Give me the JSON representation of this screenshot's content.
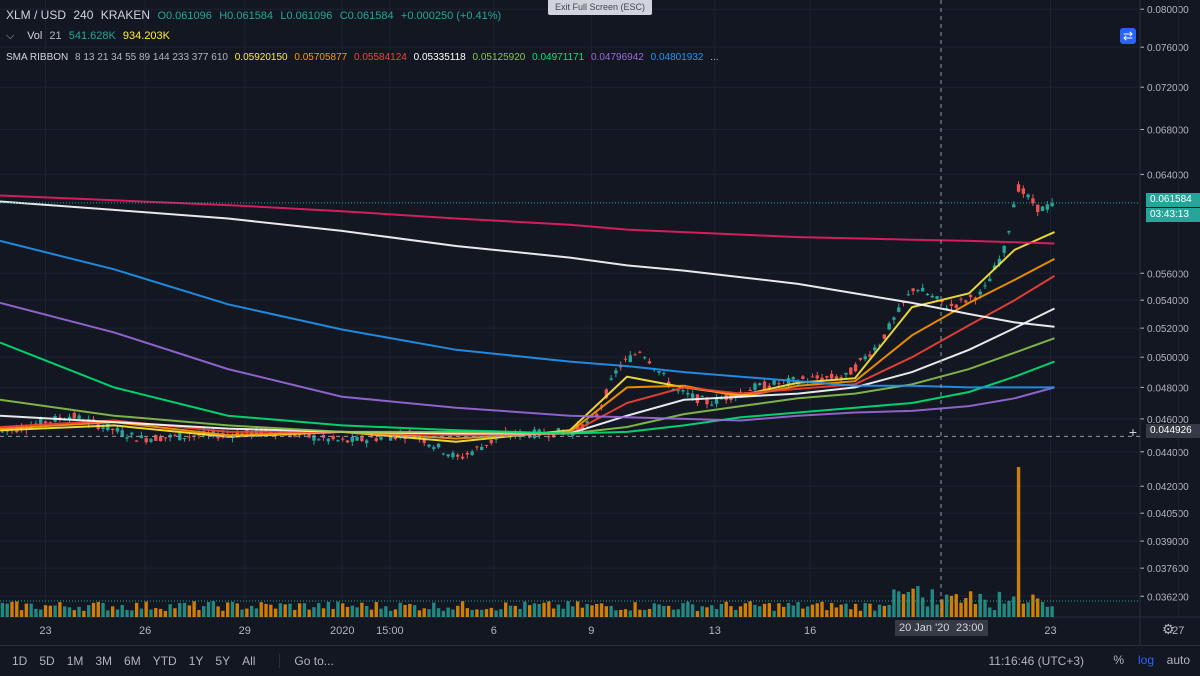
{
  "toolbar": {
    "symbol": "XLM / USD",
    "interval": "240",
    "exchange": "KRAKEN",
    "ohlc": {
      "open": "O0.061096",
      "high": "H0.061584",
      "low": "L0.061096",
      "close": "C0.061584"
    },
    "change": "+0.000250 (+0.41%)",
    "exit_fullscreen_label": "Exit Full Screen (ESC)"
  },
  "volume_indicator": {
    "name": "Vol",
    "length": "21",
    "value1": "541.628K",
    "value2": "934.203K"
  },
  "sma_ribbon": {
    "name": "SMA RIBBON",
    "lengths": "8 13 21 34 55 89 144 233 377 610",
    "values": [
      "0.05920150",
      "0.05705877",
      "0.05584124",
      "0.05335118",
      "0.05125920",
      "0.04971171",
      "0.04796942",
      "0.04801932"
    ],
    "more": "..."
  },
  "colors": {
    "background": "#131722",
    "up": "#26a69a",
    "down": "#ef5350",
    "sma": [
      "#ffeb3b",
      "#ff9800",
      "#f44336",
      "#ffffff",
      "#8bc34a",
      "#00e676",
      "#9c6ade",
      "#2196f3",
      "#ffffff",
      "#e91e63"
    ]
  },
  "price_labels": {
    "last_price": "0.061584",
    "countdown": "03:43:13",
    "crosshair_price": "0.044926"
  },
  "crosshair": {
    "time_label": "20 Jan '20",
    "time_label2": "23:00"
  },
  "bottom_bar": {
    "timeframes": [
      "1D",
      "5D",
      "1M",
      "3M",
      "6M",
      "YTD",
      "1Y",
      "5Y",
      "All"
    ],
    "goto": "Go to...",
    "clock": "11:16:46 (UTC+3)",
    "percent": "%",
    "log": "log",
    "auto": "auto"
  },
  "chart_data": {
    "type": "candlestick",
    "log_scale": true,
    "ylim": [
      0.0352,
      0.081
    ],
    "y_ticks": [
      0.08,
      0.076,
      0.072,
      0.068,
      0.064,
      0.056,
      0.054,
      0.052,
      0.05,
      0.048,
      0.046,
      0.044,
      0.042,
      0.0405,
      0.039,
      0.0376,
      0.0362
    ],
    "y_tick_labels": [
      "0.080000",
      "0.076000",
      "0.072000",
      "0.068000",
      "0.064000",
      "0.056000",
      "0.054000",
      "0.052000",
      "0.050000",
      "0.048000",
      "0.046000",
      "0.044000",
      "0.042000",
      "0.040500",
      "0.039000",
      "0.037600",
      "0.036200"
    ],
    "x_ticks": [
      "23",
      "26",
      "29",
      "2020",
      "15:00",
      "6",
      "9",
      "13",
      "16",
      "23",
      "27"
    ],
    "x_tick_positions": [
      0.021,
      0.067,
      0.113,
      0.158,
      0.18,
      0.228,
      0.273,
      0.33,
      0.374,
      0.485,
      0.544
    ],
    "x_ticks_note": "positions are fractions of the visible timeline",
    "last_price": 0.061584,
    "crosshair_price": 0.044926,
    "candles_source": "approximate path: start 0.0450, chop ~0.044-0.047 until early Jan, rally to 0.050 near day 6, consolidate 0.047-0.049, breakout mid Jan to 0.056, spike to 0.0645, close 0.0616",
    "path_points": [
      [
        0,
        0.0452
      ],
      [
        0.06,
        0.0462
      ],
      [
        0.12,
        0.0448
      ],
      [
        0.18,
        0.045
      ],
      [
        0.24,
        0.0452
      ],
      [
        0.3,
        0.0446
      ],
      [
        0.36,
        0.0451
      ],
      [
        0.4,
        0.0436
      ],
      [
        0.44,
        0.045
      ],
      [
        0.5,
        0.0452
      ],
      [
        0.52,
        0.046
      ],
      [
        0.54,
        0.0493
      ],
      [
        0.56,
        0.0505
      ],
      [
        0.59,
        0.0478
      ],
      [
        0.62,
        0.047
      ],
      [
        0.66,
        0.048
      ],
      [
        0.7,
        0.0485
      ],
      [
        0.74,
        0.0487
      ],
      [
        0.77,
        0.051
      ],
      [
        0.8,
        0.055
      ],
      [
        0.83,
        0.0535
      ],
      [
        0.86,
        0.0545
      ],
      [
        0.88,
        0.058
      ],
      [
        0.89,
        0.063
      ],
      [
        0.91,
        0.061
      ],
      [
        0.925,
        0.0616
      ]
    ],
    "sma_lines": [
      {
        "period": "8",
        "color": "#ffeb3b",
        "points": [
          [
            0,
            0.0453
          ],
          [
            0.1,
            0.0456
          ],
          [
            0.2,
            0.0449
          ],
          [
            0.3,
            0.0452
          ],
          [
            0.4,
            0.0446
          ],
          [
            0.5,
            0.0453
          ],
          [
            0.55,
            0.0487
          ],
          [
            0.6,
            0.048
          ],
          [
            0.65,
            0.0475
          ],
          [
            0.7,
            0.0483
          ],
          [
            0.75,
            0.0486
          ],
          [
            0.8,
            0.0535
          ],
          [
            0.85,
            0.0545
          ],
          [
            0.89,
            0.0578
          ],
          [
            0.925,
            0.0592
          ]
        ]
      },
      {
        "period": "13",
        "color": "#ff9800",
        "points": [
          [
            0,
            0.0454
          ],
          [
            0.1,
            0.0458
          ],
          [
            0.2,
            0.045
          ],
          [
            0.3,
            0.0452
          ],
          [
            0.4,
            0.0448
          ],
          [
            0.5,
            0.0452
          ],
          [
            0.55,
            0.048
          ],
          [
            0.6,
            0.0481
          ],
          [
            0.65,
            0.0474
          ],
          [
            0.7,
            0.0481
          ],
          [
            0.75,
            0.0484
          ],
          [
            0.8,
            0.0515
          ],
          [
            0.85,
            0.0538
          ],
          [
            0.89,
            0.0555
          ],
          [
            0.925,
            0.0571
          ]
        ]
      },
      {
        "period": "21",
        "color": "#f44336",
        "points": [
          [
            0,
            0.0455
          ],
          [
            0.1,
            0.0459
          ],
          [
            0.2,
            0.0452
          ],
          [
            0.3,
            0.0452
          ],
          [
            0.4,
            0.045
          ],
          [
            0.5,
            0.0451
          ],
          [
            0.55,
            0.047
          ],
          [
            0.6,
            0.048
          ],
          [
            0.65,
            0.0476
          ],
          [
            0.7,
            0.0479
          ],
          [
            0.75,
            0.0482
          ],
          [
            0.8,
            0.05
          ],
          [
            0.85,
            0.0522
          ],
          [
            0.89,
            0.054
          ],
          [
            0.925,
            0.0558
          ]
        ]
      },
      {
        "period": "34",
        "color": "#ffffff",
        "points": [
          [
            0,
            0.0462
          ],
          [
            0.1,
            0.0458
          ],
          [
            0.2,
            0.0454
          ],
          [
            0.3,
            0.0452
          ],
          [
            0.4,
            0.0451
          ],
          [
            0.5,
            0.0451
          ],
          [
            0.55,
            0.0462
          ],
          [
            0.6,
            0.0472
          ],
          [
            0.65,
            0.0474
          ],
          [
            0.7,
            0.0476
          ],
          [
            0.75,
            0.048
          ],
          [
            0.8,
            0.049
          ],
          [
            0.85,
            0.0505
          ],
          [
            0.89,
            0.052
          ],
          [
            0.925,
            0.0534
          ]
        ]
      },
      {
        "period": "55",
        "color": "#8bc34a",
        "points": [
          [
            0,
            0.0472
          ],
          [
            0.1,
            0.0462
          ],
          [
            0.2,
            0.0456
          ],
          [
            0.3,
            0.0452
          ],
          [
            0.4,
            0.0452
          ],
          [
            0.5,
            0.0451
          ],
          [
            0.55,
            0.0455
          ],
          [
            0.6,
            0.0463
          ],
          [
            0.65,
            0.0468
          ],
          [
            0.7,
            0.0473
          ],
          [
            0.75,
            0.0476
          ],
          [
            0.8,
            0.0482
          ],
          [
            0.85,
            0.0492
          ],
          [
            0.89,
            0.0503
          ],
          [
            0.925,
            0.0513
          ]
        ]
      },
      {
        "period": "89",
        "color": "#00e676",
        "points": [
          [
            0,
            0.051
          ],
          [
            0.1,
            0.048
          ],
          [
            0.2,
            0.0462
          ],
          [
            0.3,
            0.0456
          ],
          [
            0.4,
            0.0453
          ],
          [
            0.5,
            0.0451
          ],
          [
            0.55,
            0.0452
          ],
          [
            0.6,
            0.0456
          ],
          [
            0.65,
            0.0461
          ],
          [
            0.7,
            0.0464
          ],
          [
            0.75,
            0.0467
          ],
          [
            0.8,
            0.047
          ],
          [
            0.85,
            0.0477
          ],
          [
            0.89,
            0.0487
          ],
          [
            0.925,
            0.0497
          ]
        ]
      },
      {
        "period": "144",
        "color": "#9c6ade",
        "points": [
          [
            0,
            0.0538
          ],
          [
            0.1,
            0.0517
          ],
          [
            0.2,
            0.0492
          ],
          [
            0.3,
            0.0474
          ],
          [
            0.4,
            0.0467
          ],
          [
            0.5,
            0.0462
          ],
          [
            0.55,
            0.0461
          ],
          [
            0.6,
            0.046
          ],
          [
            0.65,
            0.0459
          ],
          [
            0.7,
            0.0462
          ],
          [
            0.75,
            0.0464
          ],
          [
            0.8,
            0.0465
          ],
          [
            0.85,
            0.0468
          ],
          [
            0.89,
            0.0473
          ],
          [
            0.925,
            0.048
          ]
        ]
      },
      {
        "period": "233",
        "color": "#2196f3",
        "points": [
          [
            0,
            0.0585
          ],
          [
            0.1,
            0.0563
          ],
          [
            0.2,
            0.0537
          ],
          [
            0.3,
            0.0519
          ],
          [
            0.4,
            0.0505
          ],
          [
            0.5,
            0.0497
          ],
          [
            0.55,
            0.0494
          ],
          [
            0.6,
            0.049
          ],
          [
            0.65,
            0.0487
          ],
          [
            0.7,
            0.0484
          ],
          [
            0.75,
            0.0481
          ],
          [
            0.8,
            0.0481
          ],
          [
            0.85,
            0.048
          ],
          [
            0.89,
            0.048
          ],
          [
            0.925,
            0.048
          ]
        ]
      },
      {
        "period": "377",
        "color": "#ffffff",
        "points": [
          [
            0,
            0.0617
          ],
          [
            0.1,
            0.061
          ],
          [
            0.2,
            0.0603
          ],
          [
            0.3,
            0.0593
          ],
          [
            0.4,
            0.0581
          ],
          [
            0.5,
            0.0572
          ],
          [
            0.55,
            0.0566
          ],
          [
            0.6,
            0.0562
          ],
          [
            0.65,
            0.0557
          ],
          [
            0.7,
            0.0552
          ],
          [
            0.75,
            0.0545
          ],
          [
            0.8,
            0.0538
          ],
          [
            0.85,
            0.053
          ],
          [
            0.89,
            0.0524
          ],
          [
            0.925,
            0.0521
          ]
        ]
      },
      {
        "period": "610",
        "color": "#e91e63",
        "points": [
          [
            0,
            0.0622
          ],
          [
            0.1,
            0.0618
          ],
          [
            0.2,
            0.0614
          ],
          [
            0.3,
            0.0609
          ],
          [
            0.4,
            0.0603
          ],
          [
            0.5,
            0.0598
          ],
          [
            0.55,
            0.0594
          ],
          [
            0.6,
            0.0592
          ],
          [
            0.65,
            0.059
          ],
          [
            0.7,
            0.0588
          ],
          [
            0.75,
            0.0587
          ],
          [
            0.8,
            0.0586
          ],
          [
            0.85,
            0.0585
          ],
          [
            0.89,
            0.0584
          ],
          [
            0.925,
            0.0583
          ]
        ]
      }
    ]
  }
}
